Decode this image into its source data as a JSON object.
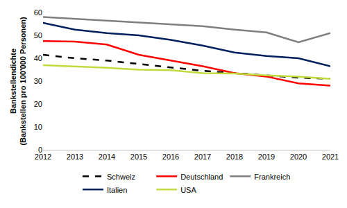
{
  "chart_data": {
    "type": "line",
    "y_label": [
      "Bankstellendichte",
      "(Bankstellen pro 100'000 Personen)"
    ],
    "categories": [
      "2012",
      "2013",
      "2014",
      "2015",
      "2016",
      "2017",
      "2018",
      "2019",
      "2020",
      "2021"
    ],
    "series": [
      {
        "name": "Schweiz",
        "color": "#000000",
        "line_style": "dashed",
        "values": [
          41.5,
          40,
          39,
          37.5,
          36,
          34.5,
          33.5,
          32.5,
          31.5,
          31
        ]
      },
      {
        "name": "Deutschland",
        "color": "#ff0000",
        "line_style": "solid",
        "values": [
          47.5,
          47.3,
          46,
          41.5,
          39,
          36.5,
          33.5,
          32,
          29,
          28
        ]
      },
      {
        "name": "Frankreich",
        "color": "#7f7f7f",
        "line_style": "solid",
        "values": [
          58,
          57.2,
          56.5,
          55.7,
          55,
          54,
          52.5,
          51.3,
          47,
          51
        ]
      },
      {
        "name": "Italien",
        "color": "#002060",
        "line_style": "solid",
        "values": [
          55.5,
          52.5,
          51,
          50,
          48,
          45.5,
          42.5,
          41,
          40,
          36.5
        ]
      },
      {
        "name": "USA",
        "color": "#bfdc3c",
        "line_style": "solid",
        "values": [
          37,
          36.5,
          35.8,
          35,
          34.8,
          33.5,
          33.3,
          32.5,
          32,
          31
        ]
      }
    ],
    "ylim": [
      0,
      60
    ],
    "yticks": [
      0,
      10,
      20,
      30,
      40,
      50,
      60
    ],
    "grid": false,
    "legend": "bottom"
  }
}
